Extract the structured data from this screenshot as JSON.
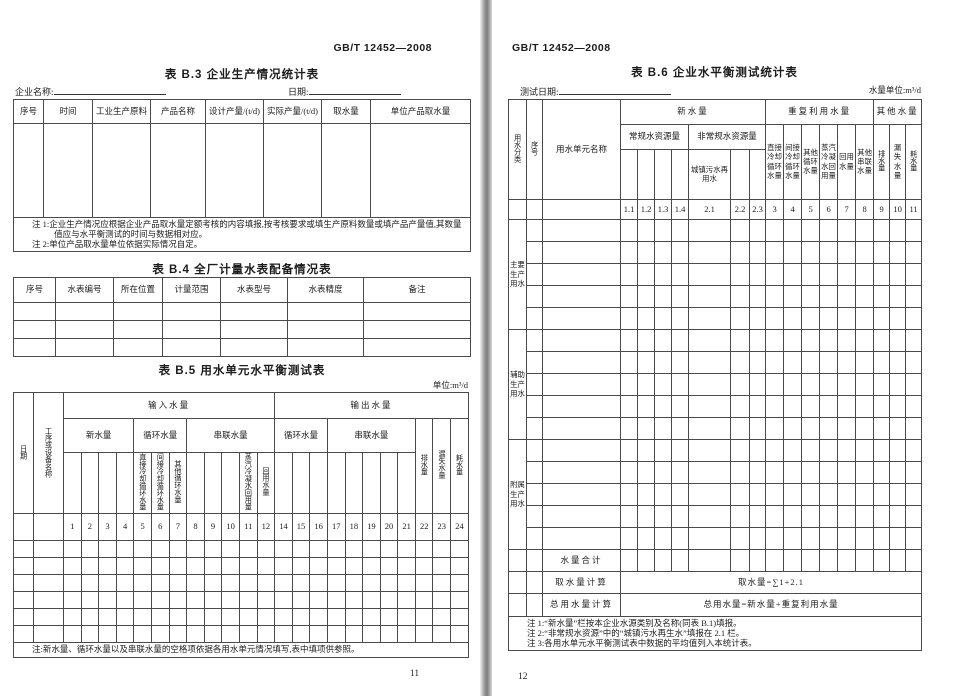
{
  "page_left": {
    "std_header": "GB/T 12452—2008",
    "page_number": "11",
    "table_b3": {
      "title": "表 B.3  企业生产情况统计表",
      "company_label": "企业名称:",
      "date_label": "日期:",
      "columns": [
        "序号",
        "时间",
        "工业生产原料",
        "产品名称",
        "设计产量/(t/d)",
        "实际产量/(t/d)",
        "取水量",
        "单位产品取水量"
      ],
      "note1": "注 1:企业生产情况应根据企业产品取水量定额考核的内容填报,按考核要求或填生产原料数量或填产品产量值,其数量值应与水平衡测试的时间与数据相对应。",
      "note2": "注 2:单位产品取水量单位依据实际情况自定。"
    },
    "table_b4": {
      "title": "表 B.4  全厂计量水表配备情况表",
      "columns": [
        "序号",
        "水表编号",
        "所在位置",
        "计量范围",
        "水表型号",
        "水表精度",
        "备注"
      ]
    },
    "table_b5": {
      "title": "表 B.5  用水单元水平衡测试表",
      "unit": "单位:m³/d",
      "col_date": "日期",
      "col_process": "工序或设备名称",
      "group_input": "输入水量",
      "group_output": "输出水量",
      "sub_new": "新水量",
      "sub_cycle_in": "循环水量",
      "sub_series_in": "串联水量",
      "sub_cycle_out": "循环水量",
      "sub_series_out": "串联水量",
      "tail_cols": [
        "排水量",
        "漏失水量",
        "耗水量"
      ],
      "leaves": [
        "直接冷却循环水量",
        "间接冷却循环水量",
        "其他循环水量",
        "蒸汽冷凝水回用量",
        "回用水量"
      ],
      "numbers": [
        "1",
        "2",
        "3",
        "4",
        "5",
        "6",
        "7",
        "8",
        "9",
        "10",
        "11",
        "12",
        "14",
        "15",
        "16",
        "17",
        "18",
        "19",
        "20",
        "21",
        "22",
        "23",
        "24"
      ],
      "note": "注:新水量、循环水量以及串联水量的空格项依据各用水单元情况填写,表中填项供参照。"
    }
  },
  "page_right": {
    "std_header": "GB/T 12452—2008",
    "page_number": "12",
    "table_b6": {
      "title": "表 B.6  企业水平衡测试统计表",
      "test_date_label": "测试日期:",
      "unit": "水量单位:m³/d",
      "col_category": "用水分类",
      "col_seq": "序号",
      "col_unit_name": "用水单元名称",
      "group_new": "新水量",
      "group_reuse": "重复利用水量",
      "group_other": "其他水量",
      "sub_conventional": "常规水资源量",
      "sub_nonconventional": "非常规水资源量",
      "leaf_municipal": "城镇污水再用水",
      "reuse_cols": [
        "直接冷却循环水量",
        "间接冷却循环水量",
        "其他循环水量",
        "蒸汽冷凝水回用量",
        "回用水量",
        "其他串联水量"
      ],
      "other_cols": [
        "排水量",
        "漏失水量",
        "耗水量"
      ],
      "numbers": [
        "1.1",
        "1.2",
        "1.3",
        "1.4",
        "2.1",
        "2.2",
        "2.3",
        "3",
        "4",
        "5",
        "6",
        "7",
        "8",
        "9",
        "10",
        "11"
      ],
      "groups": [
        "主要生产用水",
        "辅助生产用水",
        "附属生产用水"
      ],
      "total_label": "水量合计",
      "intake_label": "取水量计算",
      "intake_formula": "取水量=∑1+2.1",
      "totaluse_label": "总用水量计算",
      "totaluse_formula": "总用水量=新水量+重复利用水量",
      "note1": "注 1:“新水量”栏按本企业水源类别及名称(同表 B.1)填报。",
      "note2": "注 2:“非常规水资源”中的“城镇污水再生水”填报在 2.1 栏。",
      "note3": "注 3:各用水单元水平衡测试表中数据的平均值列入本统计表。"
    }
  }
}
